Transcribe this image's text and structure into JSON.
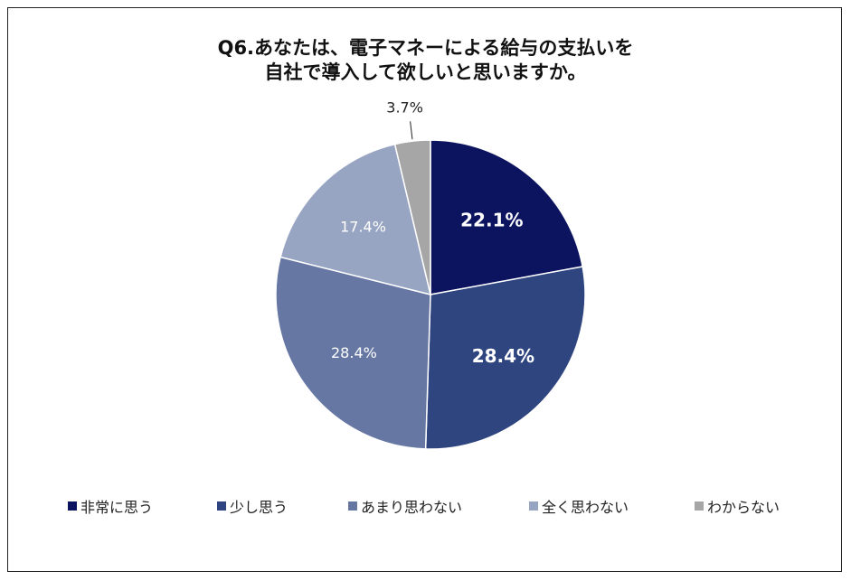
{
  "chart_data": {
    "type": "pie",
    "title_lines": [
      "Q6.あなたは、電子マネーによる給与の支払いを",
      "自社で導入して欲しいと思いますか。"
    ],
    "categories": [
      "非常に思う",
      "少し思う",
      "あまり思わない",
      "全く思わない",
      "わからない"
    ],
    "values": [
      22.1,
      28.4,
      28.4,
      17.4,
      3.7
    ],
    "labels": [
      "22.1%",
      "28.4%",
      "28.4%",
      "17.4%",
      "3.7%"
    ],
    "colors": [
      "#0c1460",
      "#2f4580",
      "#6677a3",
      "#98a5c2",
      "#a6a6a6"
    ],
    "label_colors": [
      "#ffffff",
      "#ffffff",
      "#ffffff",
      "#ffffff",
      "#222222"
    ],
    "label_bold": [
      true,
      true,
      false,
      false,
      false
    ],
    "start_angle": "12 o'clock, clockwise",
    "legend_position": "bottom"
  }
}
